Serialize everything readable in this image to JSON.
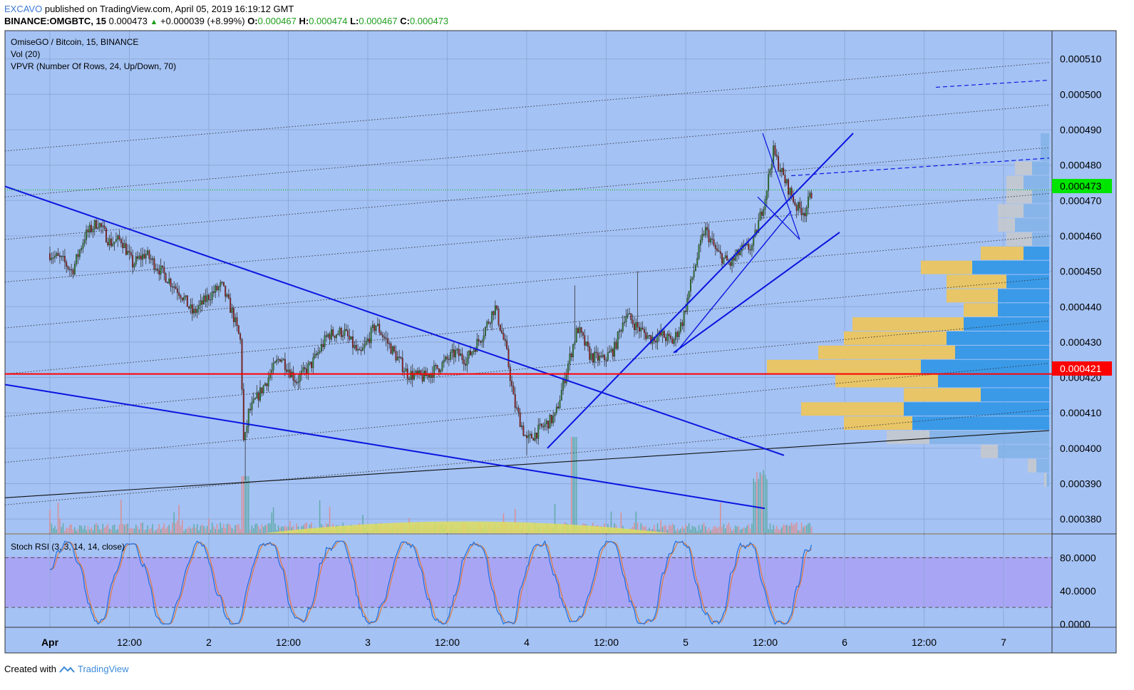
{
  "header": {
    "publisher": "EXCAVO",
    "published_text": "published on TradingView.com, April 05, 2019 16:19:12 GMT",
    "symbol": "BINANCE:OMGBTC, 15",
    "price": "0.000473",
    "change": "+0.000039 (+8.99%)",
    "o_label": "O:",
    "o_value": "0.000467",
    "h_label": "H:",
    "h_value": "0.000474",
    "l_label": "L:",
    "l_value": "0.000467",
    "c_label": "C:",
    "c_value": "0.000473"
  },
  "legend": {
    "pair": "OmiseGO / Bitcoin, 15, BINANCE",
    "vol": "Vol (20)",
    "vpvr": "VPVR (Number Of Rows, 24, Up/Down, 70)",
    "stoch": "Stoch RSI (3, 3, 14, 14, close)"
  },
  "footer": {
    "created_with": "Created with",
    "brand": "TradingView"
  },
  "colors": {
    "chart_bg": "#a4c2f4",
    "rsi_band": "#a9a5f5",
    "candle_up": "#2e8b2e",
    "candle_down": "#a3201f",
    "trend_blue": "#0a14e0",
    "support_red": "#ff0000",
    "last_price_green": "#00e500",
    "vp_up": "#3a9ae8",
    "vp_down": "#e8c566"
  },
  "chart_data": [
    {
      "type": "candlestick",
      "title": "OmiseGO / Bitcoin, 15, BINANCE",
      "x_ticks": [
        "Apr",
        "12:00",
        "2",
        "12:00",
        "3",
        "12:00",
        "4",
        "12:00",
        "5",
        "12:00",
        "6",
        "12:00",
        "7"
      ],
      "y_ticks": [
        "0.000510",
        "0.000500",
        "0.000490",
        "0.000480",
        "0.000470",
        "0.000460",
        "0.000450",
        "0.000440",
        "0.000430",
        "0.000420",
        "0.000410",
        "0.000400",
        "0.000390",
        "0.000380"
      ],
      "ylim": [
        0.000376,
        0.000518
      ],
      "last_price": "0.000473",
      "marked_level": "0.000421",
      "price_path_days": [
        [
          0.0,
          0.000455
        ],
        [
          0.08,
          0.000453
        ],
        [
          0.14,
          0.00045
        ],
        [
          0.22,
          0.00046
        ],
        [
          0.3,
          0.000464
        ],
        [
          0.38,
          0.000458
        ],
        [
          0.45,
          0.000459
        ],
        [
          0.52,
          0.000452
        ],
        [
          0.6,
          0.000455
        ],
        [
          0.7,
          0.00045
        ],
        [
          0.82,
          0.000444
        ],
        [
          0.9,
          0.000438
        ],
        [
          1.0,
          0.000443
        ],
        [
          1.08,
          0.000446
        ],
        [
          1.15,
          0.000438
        ],
        [
          1.2,
          0.00043
        ],
        [
          1.22,
          0.0004
        ],
        [
          1.25,
          0.00041
        ],
        [
          1.35,
          0.000418
        ],
        [
          1.45,
          0.000426
        ],
        [
          1.55,
          0.000419
        ],
        [
          1.65,
          0.000424
        ],
        [
          1.75,
          0.000432
        ],
        [
          1.85,
          0.000433
        ],
        [
          1.95,
          0.000426
        ],
        [
          2.05,
          0.000435
        ],
        [
          2.15,
          0.000428
        ],
        [
          2.25,
          0.000421
        ],
        [
          2.35,
          0.00042
        ],
        [
          2.45,
          0.000423
        ],
        [
          2.55,
          0.000427
        ],
        [
          2.62,
          0.000425
        ],
        [
          2.72,
          0.000432
        ],
        [
          2.8,
          0.00044
        ],
        [
          2.87,
          0.000428
        ],
        [
          2.92,
          0.000413
        ],
        [
          3.0,
          0.000402
        ],
        [
          3.1,
          0.000406
        ],
        [
          3.18,
          0.000409
        ],
        [
          3.25,
          0.000422
        ],
        [
          3.32,
          0.000434
        ],
        [
          3.4,
          0.000426
        ],
        [
          3.48,
          0.000425
        ],
        [
          3.55,
          0.000428
        ],
        [
          3.62,
          0.000438
        ],
        [
          3.7,
          0.000434
        ],
        [
          3.78,
          0.000431
        ],
        [
          3.85,
          0.000432
        ],
        [
          3.92,
          0.00043
        ],
        [
          3.98,
          0.000436
        ],
        [
          4.05,
          0.00045
        ],
        [
          4.12,
          0.000462
        ],
        [
          4.2,
          0.000455
        ],
        [
          4.28,
          0.000452
        ],
        [
          4.35,
          0.000456
        ],
        [
          4.42,
          0.000457
        ],
        [
          4.5,
          0.000471
        ],
        [
          4.55,
          0.000484
        ],
        [
          4.62,
          0.000476
        ],
        [
          4.7,
          0.000468
        ],
        [
          4.75,
          0.000467
        ],
        [
          4.8,
          0.000473
        ]
      ]
    },
    {
      "type": "bar",
      "title": "Vol (20)",
      "note": "volume histogram, unlabeled values"
    },
    {
      "type": "bar",
      "title": "VPVR (Number Of Rows, 24, Up/Down, 70)",
      "series": [
        {
          "name": "Up",
          "bins": [
            0.000377,
            0.000381,
            0.000385,
            0.000389,
            0.000393,
            0.000397,
            0.000401,
            0.000405,
            0.000409,
            0.000413,
            0.000417,
            0.000421,
            0.000425,
            0.000429,
            0.000433,
            0.000437,
            0.000441,
            0.000445,
            0.000449,
            0.000453,
            0.000457,
            0.000461,
            0.000465,
            0.000469,
            0.000473,
            0.000477,
            0.000481,
            0.000485
          ],
          "values": [
            0,
            0,
            0,
            0.3,
            1.5,
            6,
            14,
            16,
            17,
            8,
            13,
            15,
            11,
            12,
            10,
            6,
            6,
            5,
            9,
            3,
            2,
            4,
            3,
            2,
            3,
            2,
            1,
            1
          ]
        },
        {
          "name": "Down",
          "bins": [
            0.000377,
            0.000381,
            0.000385,
            0.000389,
            0.000393,
            0.000397,
            0.000401,
            0.000405,
            0.000409,
            0.000413,
            0.000417,
            0.000421,
            0.000425,
            0.000429,
            0.000433,
            0.000437,
            0.000441,
            0.000445,
            0.000449,
            0.000453,
            0.000457,
            0.000461,
            0.000465,
            0.000469,
            0.000473,
            0.000477,
            0.000481,
            0.000485
          ],
          "values": [
            0,
            0,
            0,
            0.3,
            1,
            2,
            5,
            8,
            12,
            9,
            12,
            18,
            16,
            12,
            13,
            4,
            6,
            7,
            6,
            5,
            3,
            2,
            3,
            3,
            2,
            2,
            0,
            0
          ]
        }
      ]
    },
    {
      "type": "line",
      "title": "Stoch RSI (3, 3, 14, 14, close)",
      "y_ticks": [
        "80.0000",
        "40.0000",
        "0.0000"
      ],
      "ylim": [
        -4,
        108
      ],
      "bands": [
        20,
        80
      ]
    }
  ]
}
